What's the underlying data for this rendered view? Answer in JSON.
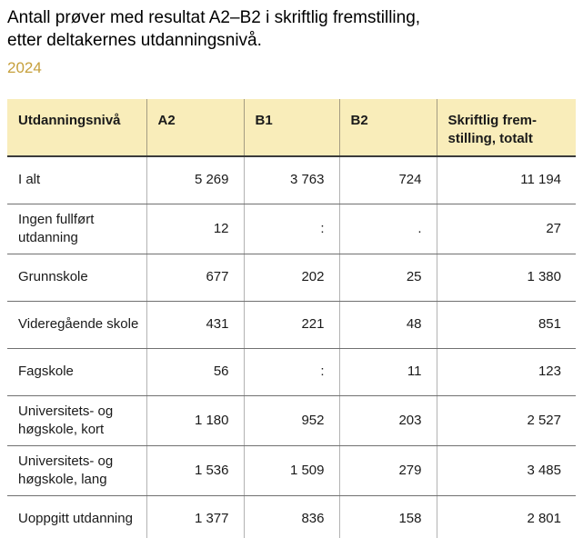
{
  "header": {
    "title": "Antall prøver med resultat A2–B2 i skriftlig fremstilling,\netter deltakernes utdanningsnivå.",
    "year": "2024"
  },
  "colors": {
    "accent_gold": "#c6a03c",
    "table_header_bg": "#f9edba",
    "strong_border": "#3b3b3b",
    "row_divider": "#707070",
    "column_divider": "#b3b3b3",
    "text": "#1a1a1a"
  },
  "chart_data": {
    "type": "table",
    "title": "Antall prøver med resultat A2–B2 i skriftlig fremstilling, etter deltakernes utdanningsnivå.",
    "subtitle": "2024",
    "columns": [
      "Utdanningsnivå",
      "A2",
      "B1",
      "B2",
      "Skriftlig frem-\nstilling, totalt"
    ],
    "rows": [
      [
        "I alt",
        "5 269",
        "3 763",
        "724",
        "11 194"
      ],
      [
        "Ingen fullført utdanning",
        "12",
        ":",
        ".",
        "27"
      ],
      [
        "Grunnskole",
        "677",
        "202",
        "25",
        "1 380"
      ],
      [
        "Videregående skole",
        "431",
        "221",
        "48",
        "851"
      ],
      [
        "Fagskole",
        "56",
        ":",
        "11",
        "123"
      ],
      [
        "Universitets- og høgskole, kort",
        "1 180",
        "952",
        "203",
        "2 527"
      ],
      [
        "Universitets- og høgskole, lang",
        "1 536",
        "1 509",
        "279",
        "3 485"
      ],
      [
        "Uoppgitt utdanning",
        "1 377",
        "836",
        "158",
        "2 801"
      ]
    ]
  }
}
